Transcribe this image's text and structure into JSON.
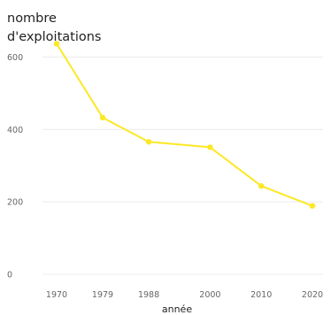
{
  "chart_data": {
    "type": "line",
    "ylabel": [
      "nombre",
      "d'exploitations"
    ],
    "xlabel": "année",
    "x": [
      1970,
      1979,
      1988,
      2000,
      2010,
      2020
    ],
    "x_tick_labels": [
      "1970",
      "1979",
      "1988",
      "2000",
      "2010",
      "2020"
    ],
    "series": [
      {
        "values": [
          637,
          433,
          366,
          351,
          244,
          189
        ]
      }
    ],
    "ylim": [
      0,
      660
    ],
    "y_ticks": [
      0,
      200,
      400,
      600
    ],
    "y_tick_labels": [
      "0",
      "200",
      "400",
      "600"
    ],
    "grid": "horizontal",
    "line_color": "#fce824"
  }
}
